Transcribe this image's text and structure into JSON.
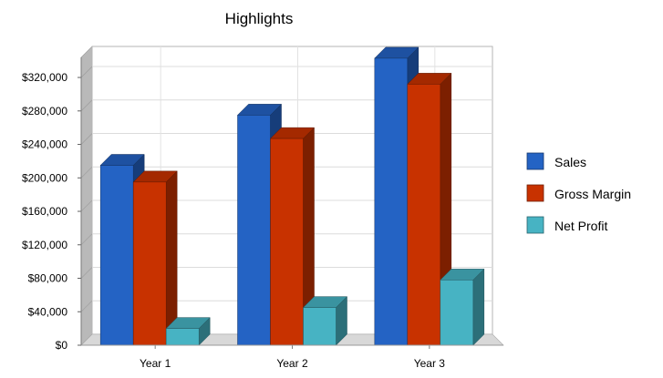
{
  "chart_data": {
    "type": "bar",
    "title": "Highlights",
    "xlabel": "",
    "ylabel": "",
    "categories": [
      "Year 1",
      "Year 2",
      "Year 3"
    ],
    "series": [
      {
        "name": "Sales",
        "color": "#2463c4",
        "values": [
          215000,
          275000,
          343000
        ]
      },
      {
        "name": "Gross Margin",
        "color": "#c83200",
        "values": [
          195000,
          247000,
          312000
        ]
      },
      {
        "name": "Net Profit",
        "color": "#47b3c3",
        "values": [
          20000,
          45000,
          78000
        ]
      }
    ],
    "ylim": [
      0,
      340000
    ],
    "yticks": [
      0,
      40000,
      80000,
      120000,
      160000,
      200000,
      240000,
      280000,
      320000
    ],
    "ytick_labels": [
      "$0",
      "$40,000",
      "$80,000",
      "$120,000",
      "$160,000",
      "$200,000",
      "$240,000",
      "$280,000",
      "$320,000"
    ],
    "grid": true,
    "legend_position": "right",
    "style": "3d-bar"
  }
}
